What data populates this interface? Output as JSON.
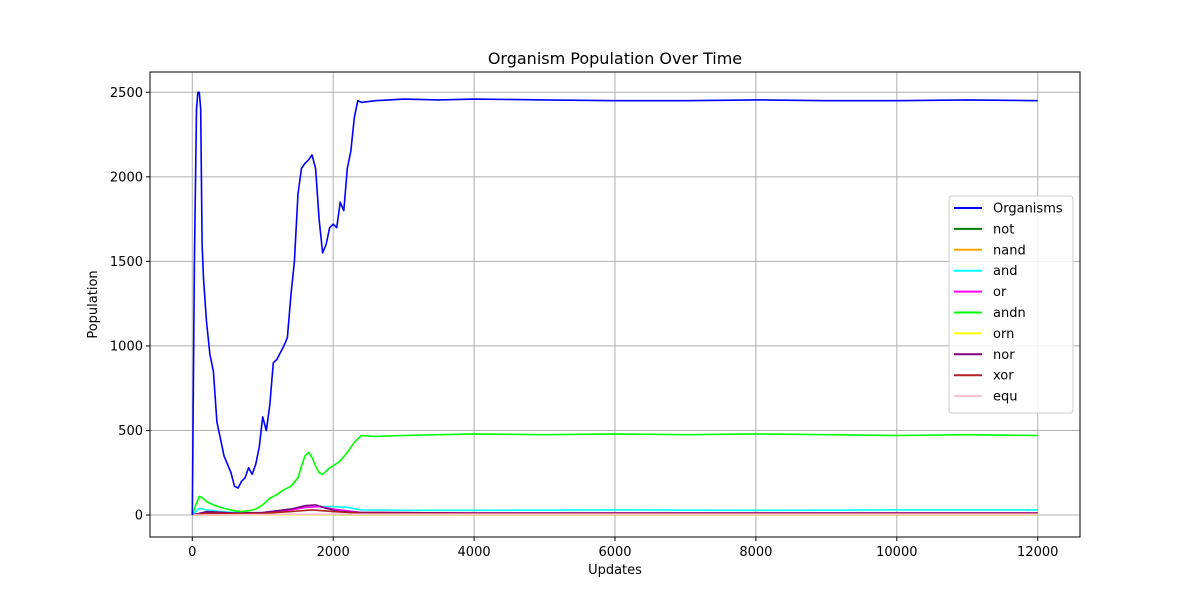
{
  "chart_data": {
    "type": "line",
    "title": "Organism Population Over Time",
    "xlabel": "Updates",
    "ylabel": "Population",
    "xlim": [
      -600,
      12600
    ],
    "ylim": [
      -130,
      2620
    ],
    "xticks": [
      0,
      2000,
      4000,
      6000,
      8000,
      10000,
      12000
    ],
    "yticks": [
      0,
      500,
      1000,
      1500,
      2000,
      2500
    ],
    "grid": true,
    "legend_position": "right",
    "series": [
      {
        "name": "Organisms",
        "color": "#0000ff",
        "x": [
          0,
          30,
          60,
          80,
          100,
          120,
          140,
          160,
          200,
          250,
          300,
          350,
          400,
          450,
          500,
          550,
          600,
          650,
          700,
          750,
          800,
          850,
          900,
          950,
          1000,
          1050,
          1100,
          1150,
          1200,
          1250,
          1300,
          1350,
          1400,
          1450,
          1500,
          1550,
          1600,
          1650,
          1700,
          1750,
          1800,
          1850,
          1900,
          1950,
          2000,
          2050,
          2100,
          2150,
          2200,
          2250,
          2300,
          2350,
          2400,
          2600,
          3000,
          3500,
          4000,
          5000,
          6000,
          7000,
          8000,
          9000,
          10000,
          11000,
          12000
        ],
        "values": [
          0,
          1500,
          2400,
          2500,
          2500,
          2400,
          1600,
          1400,
          1150,
          950,
          850,
          550,
          450,
          350,
          300,
          250,
          170,
          160,
          200,
          220,
          280,
          240,
          300,
          400,
          580,
          500,
          650,
          900,
          920,
          960,
          1000,
          1050,
          1300,
          1500,
          1900,
          2050,
          2080,
          2100,
          2130,
          2050,
          1750,
          1550,
          1600,
          1700,
          1720,
          1700,
          1850,
          1800,
          2050,
          2150,
          2350,
          2450,
          2440,
          2450,
          2460,
          2455,
          2460,
          2455,
          2450,
          2450,
          2455,
          2450,
          2450,
          2455,
          2450
        ]
      },
      {
        "name": "not",
        "color": "#008000",
        "x": [
          0,
          1000,
          2000,
          4000,
          8000,
          12000
        ],
        "values": [
          0,
          2,
          3,
          3,
          3,
          3
        ]
      },
      {
        "name": "nand",
        "color": "#ffa500",
        "x": [
          0,
          1000,
          2000,
          4000,
          8000,
          12000
        ],
        "values": [
          0,
          3,
          4,
          4,
          4,
          4
        ]
      },
      {
        "name": "and",
        "color": "#00ffff",
        "x": [
          0,
          100,
          200,
          400,
          600,
          800,
          1000,
          1200,
          1400,
          1600,
          1800,
          2000,
          2200,
          2400,
          3000,
          4000,
          6000,
          8000,
          10000,
          12000
        ],
        "values": [
          0,
          40,
          30,
          20,
          15,
          12,
          15,
          25,
          35,
          45,
          50,
          50,
          45,
          30,
          28,
          28,
          30,
          28,
          30,
          30
        ]
      },
      {
        "name": "or",
        "color": "#ff00ff",
        "x": [
          0,
          200,
          600,
          1000,
          1400,
          1600,
          1800,
          2000,
          2400,
          4000,
          8000,
          12000
        ],
        "values": [
          0,
          15,
          10,
          12,
          30,
          45,
          50,
          35,
          15,
          12,
          12,
          12
        ]
      },
      {
        "name": "andn",
        "color": "#00ff00",
        "x": [
          0,
          50,
          100,
          150,
          200,
          300,
          400,
          500,
          600,
          700,
          800,
          900,
          1000,
          1100,
          1200,
          1300,
          1400,
          1500,
          1550,
          1600,
          1650,
          1700,
          1750,
          1800,
          1850,
          1900,
          1950,
          2000,
          2100,
          2200,
          2300,
          2400,
          2600,
          3000,
          3500,
          4000,
          5000,
          6000,
          7000,
          8000,
          9000,
          10000,
          11000,
          12000
        ],
        "values": [
          0,
          60,
          110,
          100,
          80,
          60,
          45,
          35,
          25,
          20,
          25,
          35,
          60,
          100,
          120,
          150,
          170,
          220,
          290,
          350,
          370,
          340,
          290,
          250,
          240,
          260,
          280,
          290,
          320,
          370,
          430,
          470,
          465,
          470,
          475,
          480,
          475,
          480,
          475,
          480,
          475,
          470,
          475,
          470
        ]
      },
      {
        "name": "orn",
        "color": "#ffff00",
        "x": [
          0,
          1000,
          2000,
          4000,
          8000,
          12000
        ],
        "values": [
          0,
          2,
          3,
          3,
          3,
          3
        ]
      },
      {
        "name": "nor",
        "color": "#800080",
        "x": [
          0,
          200,
          600,
          1000,
          1400,
          1600,
          1750,
          1900,
          2100,
          2400,
          4000,
          8000,
          12000
        ],
        "values": [
          0,
          20,
          12,
          15,
          35,
          55,
          60,
          40,
          20,
          15,
          12,
          12,
          12
        ]
      },
      {
        "name": "xor",
        "color": "#b22222",
        "x": [
          0,
          200,
          600,
          1000,
          1400,
          1700,
          2000,
          2400,
          4000,
          8000,
          12000
        ],
        "values": [
          0,
          10,
          8,
          10,
          20,
          30,
          20,
          10,
          8,
          8,
          8
        ]
      },
      {
        "name": "equ",
        "color": "#ffc0cb",
        "x": [
          0,
          1000,
          2000,
          4000,
          8000,
          12000
        ],
        "values": [
          0,
          3,
          5,
          5,
          5,
          5
        ]
      }
    ]
  }
}
